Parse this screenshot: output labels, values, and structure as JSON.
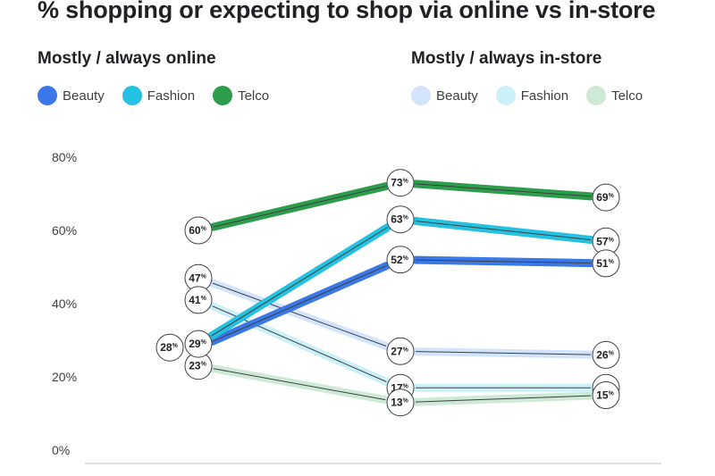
{
  "chart_data": {
    "type": "line",
    "title": "% shopping or expecting to shop via online vs in-store",
    "categories": [
      "",
      "",
      ""
    ],
    "ylim": [
      0,
      80
    ],
    "yticks": [
      "0%",
      "20%",
      "40%",
      "60%",
      "80%"
    ],
    "unit": "%",
    "groups": [
      {
        "title": "Mostly / always online",
        "series": [
          {
            "name": "Beauty",
            "color": "#3b78e7",
            "values": [
              28,
              52,
              null
            ]
          },
          {
            "name": "Fashion",
            "color": "#24c1e0",
            "values": [
              29,
              63,
              null
            ]
          },
          {
            "name": "Telco",
            "color": "#2d9d4c",
            "values": [
              60,
              73,
              69
            ]
          }
        ]
      },
      {
        "title": "Mostly / always in-store",
        "series": [
          {
            "name": "Beauty",
            "color": "#d2e3fc",
            "values": [
              47,
              27,
              26
            ]
          },
          {
            "name": "Fashion",
            "color": "#cbf0f8",
            "values": [
              41,
              17,
              17
            ]
          },
          {
            "name": "Telco",
            "color": "#ceead6",
            "values": [
              23,
              13,
              15
            ]
          }
        ]
      }
    ],
    "extra_labels": [
      57,
      51
    ]
  }
}
